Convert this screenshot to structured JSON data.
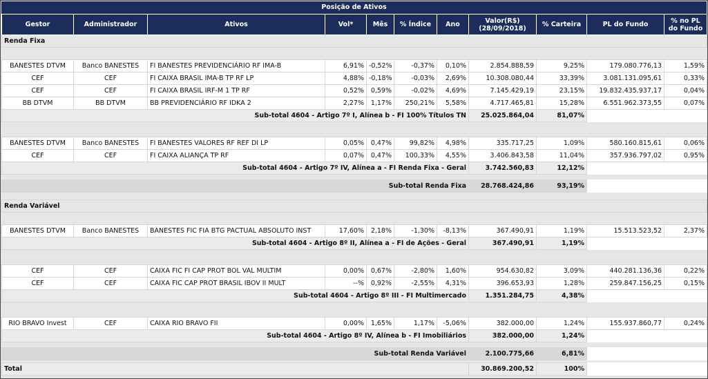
{
  "title": "Posição de Ativos",
  "columns": [
    "Gestor",
    "Administrador",
    "Ativos",
    "Vol*",
    "Mês",
    "% Índice",
    "Ano",
    "Valor(R$)\n(28/09/2018)",
    "% Carteira",
    "PL do Fundo",
    "% no PL do Fundo"
  ],
  "sections": [
    {
      "name": "Renda Fixa",
      "groups": [
        {
          "rows": [
            [
              "BANESTES DTVM",
              "Banco BANESTES",
              "FI BANESTES PREVIDENCIÁRIO RF IMA-B",
              "6,91%",
              "-0,52%",
              "-0,37%",
              "0,10%",
              "2.854.888,59",
              "9,25%",
              "179.080.776,13",
              "1,59%"
            ],
            [
              "CEF",
              "CEF",
              "FI CAIXA BRASIL IMA-B TP RF LP",
              "4,88%",
              "-0,18%",
              "-0,03%",
              "2,69%",
              "10.308.080,44",
              "33,39%",
              "3.081.131.095,61",
              "0,33%"
            ],
            [
              "CEF",
              "CEF",
              "FI CAIXA BRASIL IRF-M 1 TP RF",
              "0,52%",
              "0,59%",
              "-0,02%",
              "4,69%",
              "7.145.429,19",
              "23,15%",
              "19.832.435.937,17",
              "0,04%"
            ],
            [
              "BB DTVM",
              "BB DTVM",
              "BB PREVIDENCIÁRIO RF IDKA 2",
              "2,27%",
              "1,17%",
              "250,21%",
              "5,58%",
              "4.717.465,81",
              "15,28%",
              "6.551.962.373,55",
              "0,07%"
            ]
          ],
          "subtotal": {
            "label": "Sub-total 4604 - Artigo 7º I, Alínea b - FI 100% Títulos TN",
            "valor": "25.025.864,04",
            "carteira": "81,07%"
          }
        },
        {
          "rows": [
            [
              "BANESTES DTVM",
              "Banco BANESTES",
              "FI BANESTES VALORES RF REF DI LP",
              "0,05%",
              "0,47%",
              "99,82%",
              "4,98%",
              "335.717,25",
              "1,09%",
              "580.160.815,61",
              "0,06%"
            ],
            [
              "CEF",
              "CEF",
              "FI CAIXA ALIANÇA TP RF",
              "0,07%",
              "0,47%",
              "100,33%",
              "4,55%",
              "3.406.843,58",
              "11,04%",
              "357.936.797,02",
              "0,95%"
            ]
          ],
          "subtotal": {
            "label": "Sub-total 4604 - Artigo 7º IV, Alínea a - FI Renda Fixa - Geral",
            "valor": "3.742.560,83",
            "carteira": "12,12%"
          }
        }
      ],
      "subtotal": {
        "label": "Sub-total Renda Fixa",
        "valor": "28.768.424,86",
        "carteira": "93,19%"
      }
    },
    {
      "name": "Renda Variável",
      "groups": [
        {
          "rows": [
            [
              "BANESTES DTVM",
              "Banco BANESTES",
              "BANESTES FIC FIA BTG PACTUAL ABSOLUTO INST",
              "17,60%",
              "2,18%",
              "-1,30%",
              "-8,13%",
              "367.490,91",
              "1,19%",
              "15.513.523,52",
              "2,37%"
            ]
          ],
          "subtotal": {
            "label": "Sub-total 4604 - Artigo 8º II, Alínea a - FI de Ações - Geral",
            "valor": "367.490,91",
            "carteira": "1,19%"
          }
        },
        {
          "rows": [
            [
              "CEF",
              "CEF",
              "CAIXA FIC FI CAP PROT BOL VAL MULTIM",
              "0,00%",
              "0,67%",
              "-2,80%",
              "1,60%",
              "954.630,82",
              "3,09%",
              "440.281.136,36",
              "0,22%"
            ],
            [
              "CEF",
              "CEF",
              "CAIXA FIC CAP PROT BRASIL IBOV II MULT",
              "--%",
              "0,92%",
              "-2,55%",
              "4,31%",
              "396.653,93",
              "1,28%",
              "259.847.156,25",
              "0,15%"
            ]
          ],
          "subtotal": {
            "label": "Sub-total 4604 - Artigo 8º III - FI Multimercado",
            "valor": "1.351.284,75",
            "carteira": "4,38%"
          }
        },
        {
          "rows": [
            [
              "RIO BRAVO Invest",
              "CEF",
              "CAIXA RIO BRAVO FII",
              "0,00%",
              "1,65%",
              "1,17%",
              "-5,06%",
              "382.000,00",
              "1,24%",
              "155.937.860,77",
              "0,24%"
            ]
          ],
          "subtotal": {
            "label": "Sub-total 4604 - Artigo 8º IV, Alínea b - FI Imobiliários",
            "valor": "382.000,00",
            "carteira": "1,24%"
          }
        }
      ],
      "subtotal": {
        "label": "Sub-total Renda Variável",
        "valor": "2.100.775,66",
        "carteira": "6,81%"
      }
    }
  ],
  "total": {
    "label": "Total",
    "valor": "30.869.200,52",
    "carteira": "100%"
  }
}
